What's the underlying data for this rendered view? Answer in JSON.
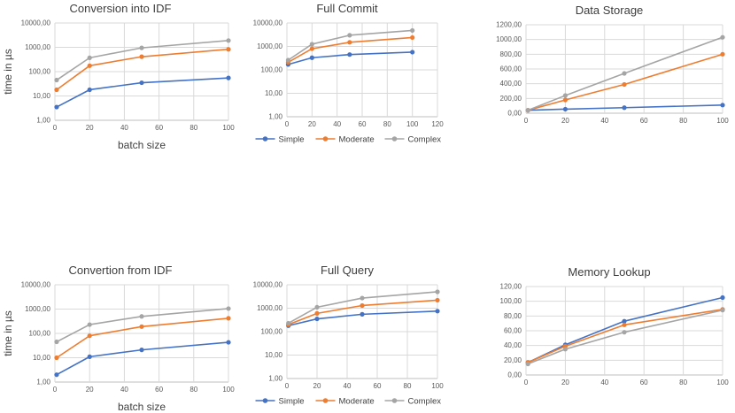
{
  "page": {
    "background": "#ffffff"
  },
  "colors": {
    "series_blue": "#4472C4",
    "series_orange": "#ED7D31",
    "series_gray": "#A5A5A5",
    "gridline": "#D9D9D9",
    "axis_line": "#BFBFBF",
    "tick_text": "#595959",
    "title_text": "#3d3d3d"
  },
  "legend_labels": [
    "Simple",
    "Moderate",
    "Complex"
  ],
  "chart_data": [
    {
      "id": "conversion-into-idf",
      "type": "line",
      "title": "Conversion into IDF",
      "xlabel": "batch size",
      "ylabel": "time in µs",
      "y_scale": "log",
      "ylim": [
        1,
        10000
      ],
      "xlim": [
        0,
        100
      ],
      "grid": true,
      "legend": false,
      "x": [
        1,
        20,
        50,
        100
      ],
      "series": [
        {
          "name": "Simple",
          "color": "#4472C4",
          "values": [
            3.5,
            18,
            35,
            55
          ]
        },
        {
          "name": "Moderate",
          "color": "#ED7D31",
          "values": [
            18,
            175,
            410,
            830
          ]
        },
        {
          "name": "Complex",
          "color": "#A5A5A5",
          "values": [
            45,
            370,
            950,
            1900
          ]
        }
      ],
      "yticks": [
        {
          "v": 1,
          "label": "1,00"
        },
        {
          "v": 10,
          "label": "10,00"
        },
        {
          "v": 100,
          "label": "100,00"
        },
        {
          "v": 1000,
          "label": "1000,00"
        },
        {
          "v": 10000,
          "label": "10000,00"
        }
      ],
      "xticks": [
        {
          "v": 0,
          "label": "0"
        },
        {
          "v": 20,
          "label": "20"
        },
        {
          "v": 40,
          "label": "40"
        },
        {
          "v": 60,
          "label": "60"
        },
        {
          "v": 80,
          "label": "80"
        },
        {
          "v": 100,
          "label": "100"
        }
      ]
    },
    {
      "id": "full-commit",
      "type": "line",
      "title": "Full Commit",
      "xlabel": "",
      "ylabel": "",
      "y_scale": "log",
      "ylim": [
        1,
        10000
      ],
      "xlim": [
        0,
        120
      ],
      "grid": true,
      "legend": true,
      "x": [
        1,
        20,
        50,
        100
      ],
      "series": [
        {
          "name": "Simple",
          "color": "#4472C4",
          "values": [
            170,
            330,
            450,
            570
          ]
        },
        {
          "name": "Moderate",
          "color": "#ED7D31",
          "values": [
            210,
            800,
            1500,
            2400
          ]
        },
        {
          "name": "Complex",
          "color": "#A5A5A5",
          "values": [
            260,
            1250,
            3000,
            4800
          ]
        }
      ],
      "yticks": [
        {
          "v": 1,
          "label": "1,00"
        },
        {
          "v": 10,
          "label": "10,00"
        },
        {
          "v": 100,
          "label": "100,00"
        },
        {
          "v": 1000,
          "label": "1000,00"
        },
        {
          "v": 10000,
          "label": "10000,00"
        }
      ],
      "xticks": [
        {
          "v": 0,
          "label": "0"
        },
        {
          "v": 20,
          "label": "20"
        },
        {
          "v": 40,
          "label": "40"
        },
        {
          "v": 60,
          "label": "60"
        },
        {
          "v": 80,
          "label": "80"
        },
        {
          "v": 100,
          "label": "100"
        },
        {
          "v": 120,
          "label": "120"
        }
      ]
    },
    {
      "id": "data-storage",
      "type": "line",
      "title": "Data Storage",
      "xlabel": "",
      "ylabel": "",
      "y_scale": "linear",
      "ylim": [
        0,
        1200
      ],
      "xlim": [
        0,
        100
      ],
      "grid": true,
      "legend": false,
      "x": [
        1,
        20,
        50,
        100
      ],
      "series": [
        {
          "name": "Simple",
          "color": "#4472C4",
          "values": [
            40,
            55,
            75,
            110
          ]
        },
        {
          "name": "Moderate",
          "color": "#ED7D31",
          "values": [
            40,
            180,
            390,
            800
          ]
        },
        {
          "name": "Complex",
          "color": "#A5A5A5",
          "values": [
            40,
            240,
            540,
            1030
          ]
        }
      ],
      "yticks": [
        {
          "v": 0,
          "label": "0,00"
        },
        {
          "v": 200,
          "label": "200,00"
        },
        {
          "v": 400,
          "label": "400,00"
        },
        {
          "v": 600,
          "label": "600,00"
        },
        {
          "v": 800,
          "label": "800,00"
        },
        {
          "v": 1000,
          "label": "1000,00"
        },
        {
          "v": 1200,
          "label": "1200,00"
        }
      ],
      "xticks": [
        {
          "v": 0,
          "label": "0"
        },
        {
          "v": 20,
          "label": "20"
        },
        {
          "v": 40,
          "label": "40"
        },
        {
          "v": 60,
          "label": "60"
        },
        {
          "v": 80,
          "label": "80"
        },
        {
          "v": 100,
          "label": "100"
        }
      ]
    },
    {
      "id": "convertion-from-idf",
      "type": "line",
      "title": "Convertion from IDF",
      "xlabel": "batch size",
      "ylabel": "time in µs",
      "y_scale": "log",
      "ylim": [
        1,
        10000
      ],
      "xlim": [
        0,
        100
      ],
      "grid": true,
      "legend": false,
      "x": [
        1,
        20,
        50,
        100
      ],
      "series": [
        {
          "name": "Simple",
          "color": "#4472C4",
          "values": [
            2,
            11,
            21,
            43
          ]
        },
        {
          "name": "Moderate",
          "color": "#ED7D31",
          "values": [
            10,
            80,
            190,
            420
          ]
        },
        {
          "name": "Complex",
          "color": "#A5A5A5",
          "values": [
            45,
            230,
            500,
            1050
          ]
        }
      ],
      "yticks": [
        {
          "v": 1,
          "label": "1,00"
        },
        {
          "v": 10,
          "label": "10,00"
        },
        {
          "v": 100,
          "label": "100,00"
        },
        {
          "v": 1000,
          "label": "1000,00"
        },
        {
          "v": 10000,
          "label": "10000,00"
        }
      ],
      "xticks": [
        {
          "v": 0,
          "label": "0"
        },
        {
          "v": 20,
          "label": "20"
        },
        {
          "v": 40,
          "label": "40"
        },
        {
          "v": 60,
          "label": "60"
        },
        {
          "v": 80,
          "label": "80"
        },
        {
          "v": 100,
          "label": "100"
        }
      ]
    },
    {
      "id": "full-query",
      "type": "line",
      "title": "Full Query",
      "xlabel": "",
      "ylabel": "",
      "y_scale": "log",
      "ylim": [
        1,
        10000
      ],
      "xlim": [
        0,
        100
      ],
      "grid": true,
      "legend": true,
      "x": [
        1,
        20,
        50,
        100
      ],
      "series": [
        {
          "name": "Simple",
          "color": "#4472C4",
          "values": [
            180,
            350,
            550,
            750
          ]
        },
        {
          "name": "Moderate",
          "color": "#ED7D31",
          "values": [
            200,
            600,
            1300,
            2200
          ]
        },
        {
          "name": "Complex",
          "color": "#A5A5A5",
          "values": [
            230,
            1100,
            2700,
            5000
          ]
        }
      ],
      "yticks": [
        {
          "v": 1,
          "label": "1,00"
        },
        {
          "v": 10,
          "label": "10,00"
        },
        {
          "v": 100,
          "label": "100,00"
        },
        {
          "v": 1000,
          "label": "1000,00"
        },
        {
          "v": 10000,
          "label": "10000,00"
        }
      ],
      "xticks": [
        {
          "v": 0,
          "label": "0"
        },
        {
          "v": 20,
          "label": "20"
        },
        {
          "v": 40,
          "label": "40"
        },
        {
          "v": 60,
          "label": "60"
        },
        {
          "v": 80,
          "label": "80"
        },
        {
          "v": 100,
          "label": "100"
        }
      ]
    },
    {
      "id": "memory-lookup",
      "type": "line",
      "title": "Memory Lookup",
      "xlabel": "",
      "ylabel": "",
      "y_scale": "linear",
      "ylim": [
        0,
        120
      ],
      "xlim": [
        0,
        100
      ],
      "grid": true,
      "legend": false,
      "x": [
        1,
        20,
        50,
        100
      ],
      "series": [
        {
          "name": "Simple",
          "color": "#4472C4",
          "values": [
            17,
            41,
            73,
            105
          ]
        },
        {
          "name": "Moderate",
          "color": "#ED7D31",
          "values": [
            17,
            39,
            68,
            89
          ]
        },
        {
          "name": "Complex",
          "color": "#A5A5A5",
          "values": [
            15,
            35,
            58,
            88
          ]
        }
      ],
      "yticks": [
        {
          "v": 0,
          "label": "0,00"
        },
        {
          "v": 20,
          "label": "20,00"
        },
        {
          "v": 40,
          "label": "40,00"
        },
        {
          "v": 60,
          "label": "60,00"
        },
        {
          "v": 80,
          "label": "80,00"
        },
        {
          "v": 100,
          "label": "100,00"
        },
        {
          "v": 120,
          "label": "120,00"
        }
      ],
      "xticks": [
        {
          "v": 0,
          "label": "0"
        },
        {
          "v": 20,
          "label": "20"
        },
        {
          "v": 40,
          "label": "40"
        },
        {
          "v": 60,
          "label": "60"
        },
        {
          "v": 80,
          "label": "80"
        },
        {
          "v": 100,
          "label": "100"
        }
      ]
    }
  ]
}
